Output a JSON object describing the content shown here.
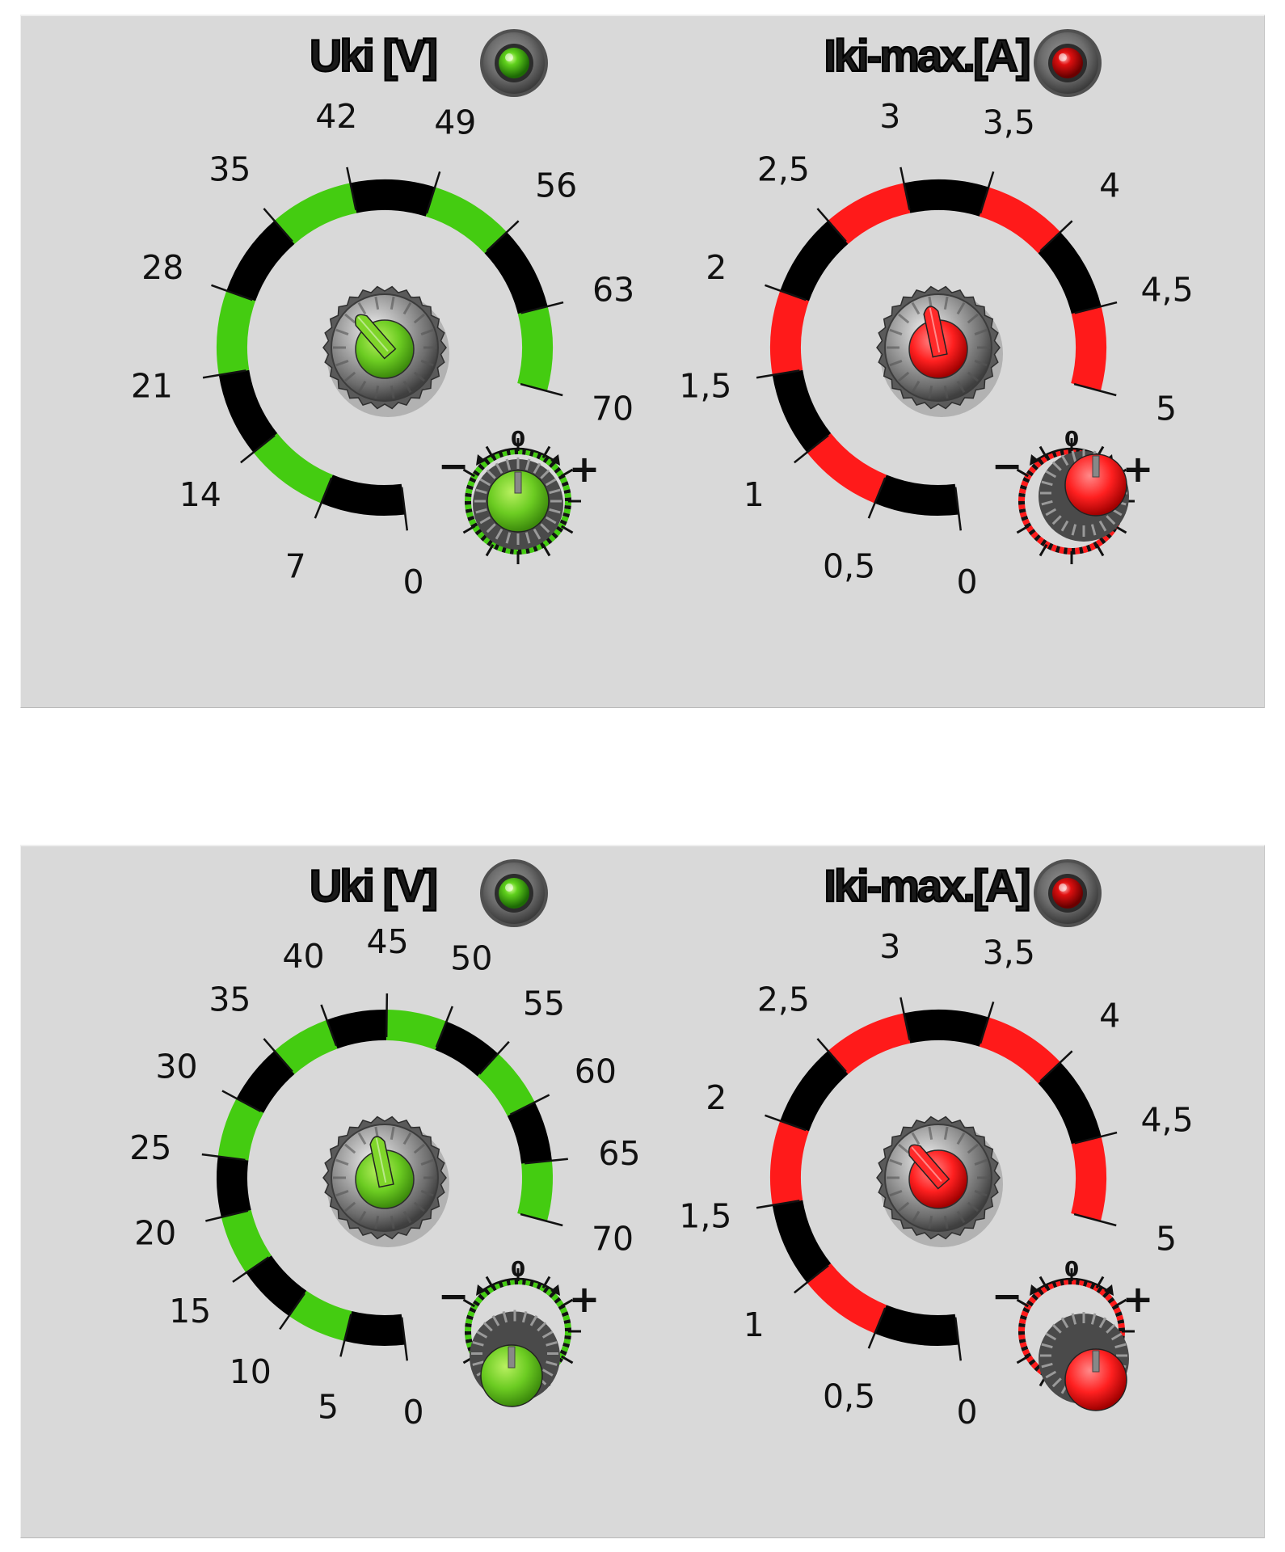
{
  "panels": [
    {
      "id": "panel-1",
      "voltage": {
        "title": "Uki [V]",
        "led_color": "green",
        "accent": "#44cc11",
        "scale_labels": [
          "0",
          "7",
          "14",
          "21",
          "28",
          "35",
          "42",
          "49",
          "56",
          "63",
          "70"
        ],
        "setting_value": 35,
        "trim": {
          "minus": "−",
          "zero": "0",
          "plus": "+"
        }
      },
      "current": {
        "title": "Iki-max.[A]",
        "led_color": "red",
        "accent": "#ff1a1a",
        "scale_labels": [
          "0",
          "0,5",
          "1",
          "1,5",
          "2",
          "2,5",
          "3",
          "3,5",
          "4",
          "4,5",
          "5"
        ],
        "setting_value": "3",
        "trim": {
          "minus": "−",
          "zero": "0",
          "plus": "+"
        }
      }
    },
    {
      "id": "panel-2",
      "voltage": {
        "title": "Uki [V]",
        "led_color": "green",
        "accent": "#44cc11",
        "scale_labels": [
          "0",
          "5",
          "10",
          "15",
          "20",
          "25",
          "30",
          "35",
          "40",
          "45",
          "50",
          "55",
          "60",
          "65",
          "70"
        ],
        "setting_value": 42,
        "trim": {
          "minus": "−",
          "zero": "0",
          "plus": "+"
        }
      },
      "current": {
        "title": "Iki-max.[A]",
        "led_color": "red",
        "accent": "#ff1a1a",
        "scale_labels": [
          "0",
          "0,5",
          "1",
          "1,5",
          "2",
          "2,5",
          "3",
          "3,5",
          "4",
          "4,5",
          "5"
        ],
        "setting_value": "2,5",
        "trim": {
          "minus": "−",
          "zero": "0",
          "plus": "+"
        }
      }
    }
  ]
}
